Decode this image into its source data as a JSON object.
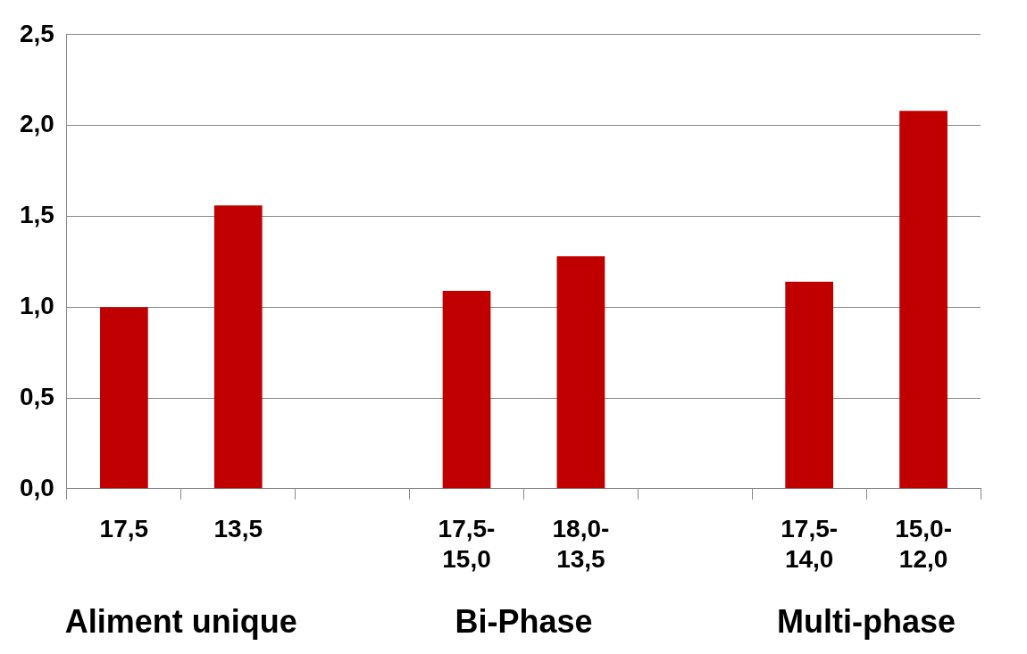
{
  "chart_data": {
    "type": "bar",
    "categories": [
      "17,5",
      "13,5",
      null,
      "17,5-15,0",
      "18,0-13,5",
      null,
      "17,5-14,0",
      "15,0-12,0"
    ],
    "values": [
      1.0,
      1.56,
      null,
      1.09,
      1.28,
      null,
      1.14,
      2.08
    ],
    "color": "#c00000",
    "ylim": [
      0,
      2.5
    ],
    "yticks": [
      {
        "value": 0,
        "label": "0,0"
      },
      {
        "value": 0.5,
        "label": "0,5"
      },
      {
        "value": 1,
        "label": "1,0"
      },
      {
        "value": 1.5,
        "label": "1,5"
      },
      {
        "value": 2,
        "label": "2,0"
      },
      {
        "value": 2.5,
        "label": "2,5"
      }
    ],
    "grid": "y",
    "legend": false,
    "annotations": [
      "Aliment unique",
      "Bi-Phase",
      "Multi-phase"
    ]
  }
}
